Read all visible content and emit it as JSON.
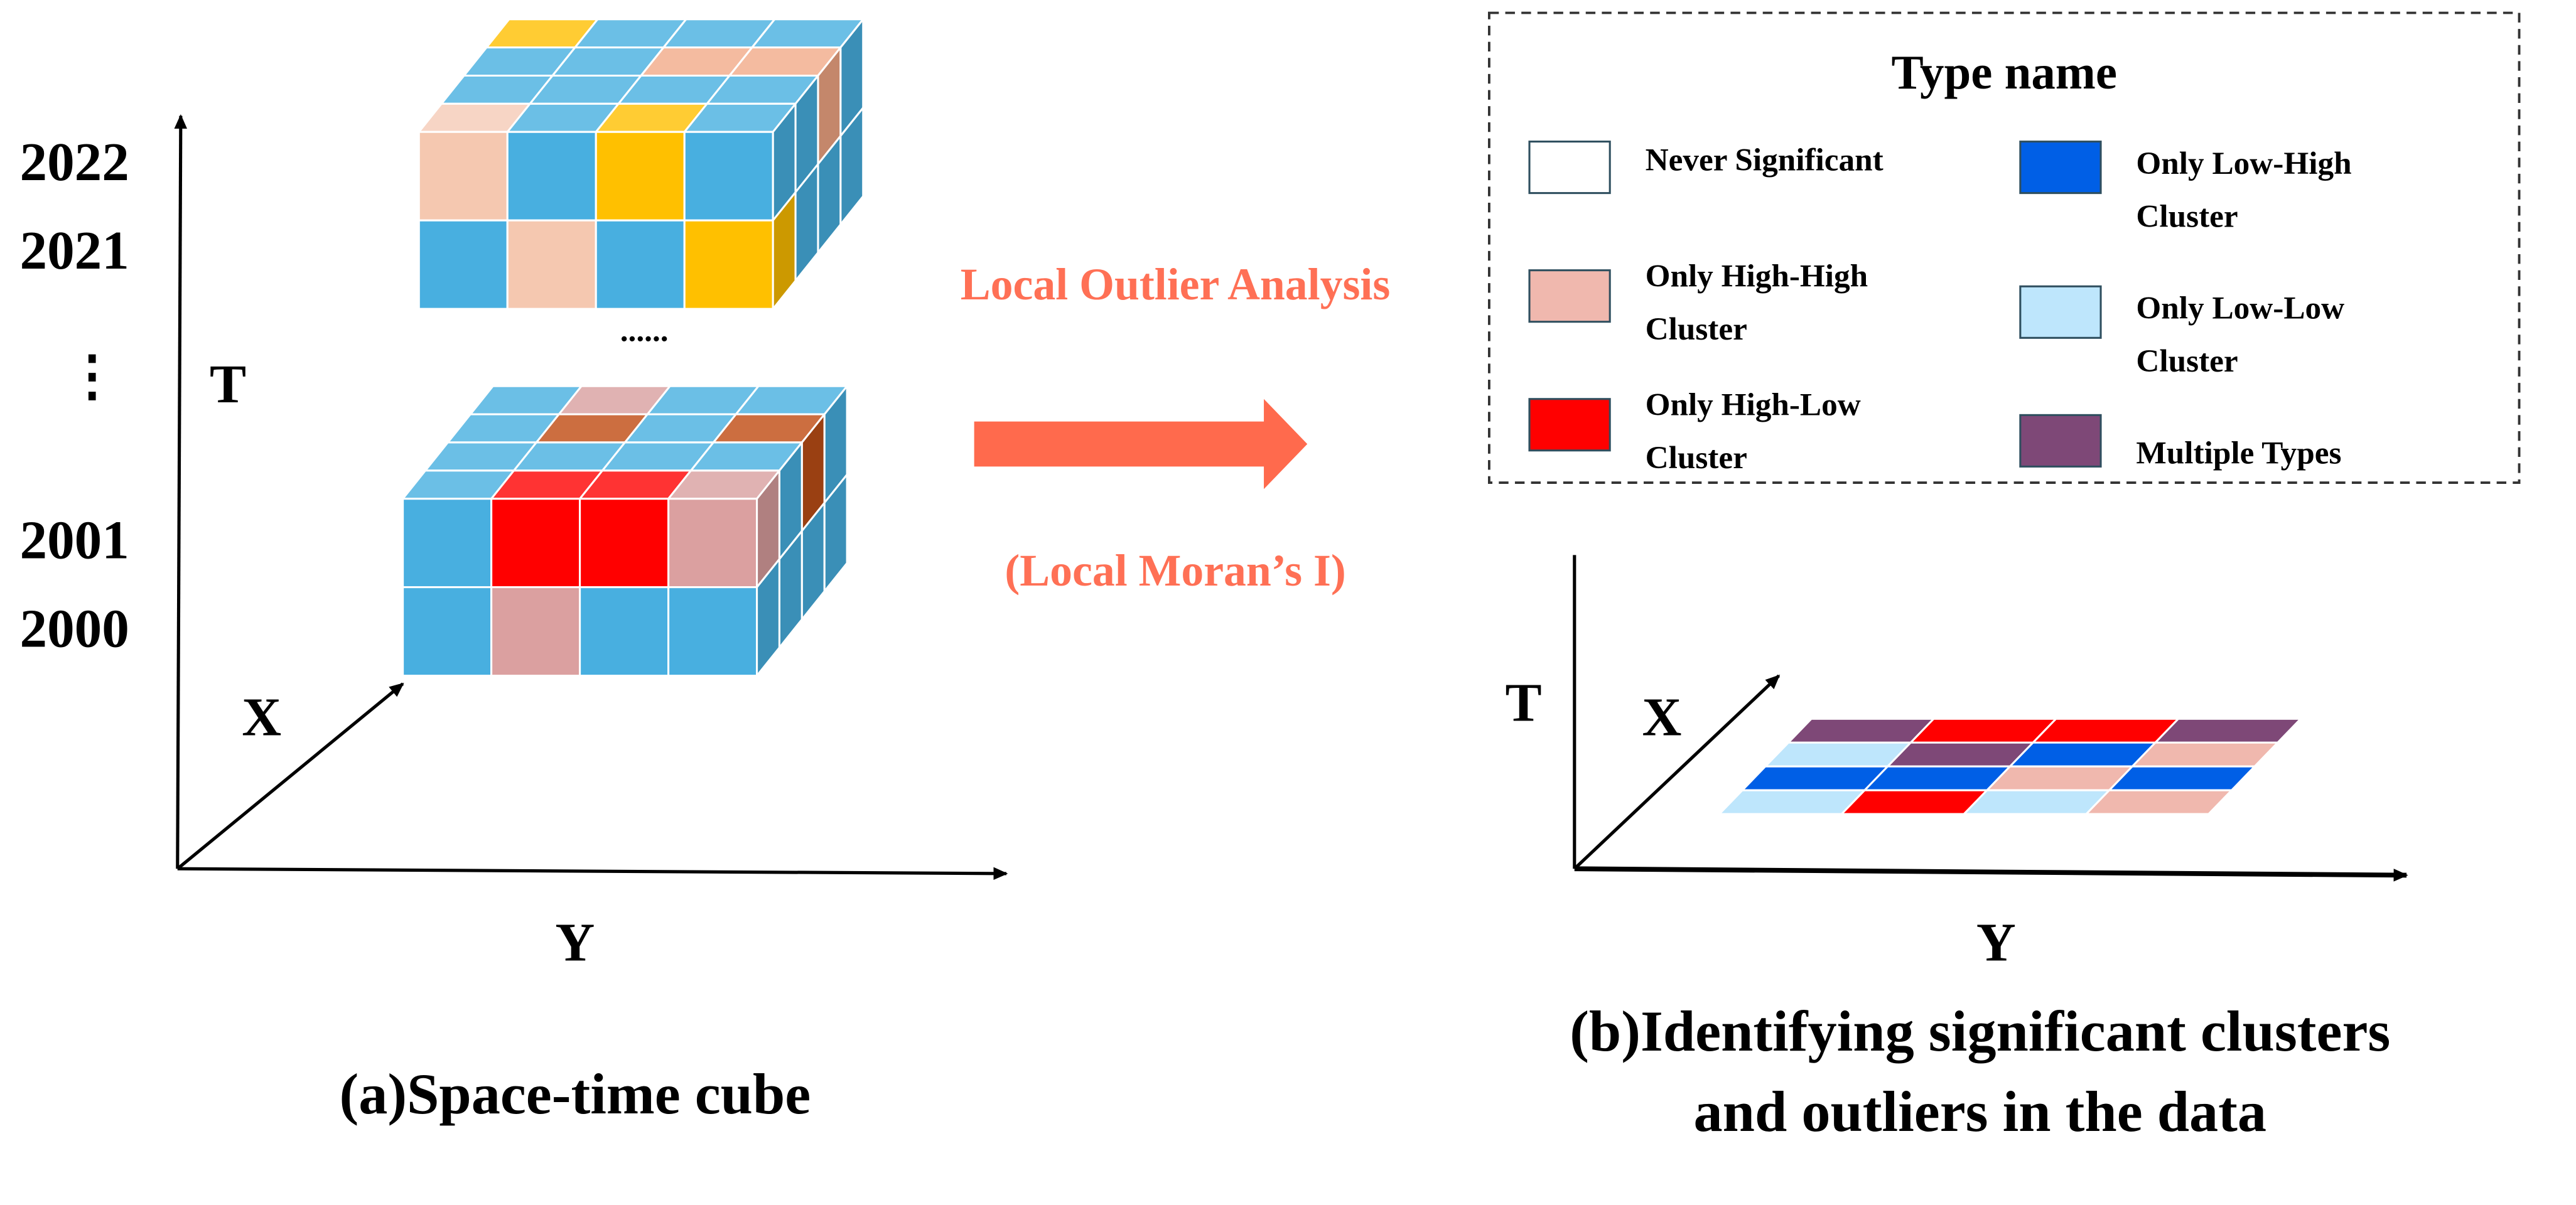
{
  "panel_a": {
    "years": [
      "2022",
      "2021",
      "⋮",
      "2001",
      "2000"
    ],
    "axis_t": "T",
    "axis_x": "X",
    "axis_y": "Y",
    "ellipsis": "......",
    "caption": "(a)Space-time cube",
    "top_cube": {
      "front": [
        [
          "peach",
          "blue",
          "yellow",
          "blue"
        ],
        [
          "blue",
          "peach",
          "blue",
          "yellow"
        ]
      ],
      "top": [
        [
          "peachL",
          "blueL",
          "yellowL",
          "blueL"
        ],
        [
          "blueL",
          "blueL",
          "blueL",
          "blueL"
        ],
        [
          "blueL",
          "blueL",
          "salmon",
          "salmon"
        ],
        [
          "yellowL",
          "blueL",
          "blueL",
          "blueL"
        ]
      ],
      "side": [
        [
          "blueD",
          "blueD",
          "brownL",
          "blueD"
        ],
        [
          "yellowD",
          "blueD",
          "blueD",
          "blueD"
        ]
      ]
    },
    "bottom_cube": {
      "front": [
        [
          "blue",
          "red",
          "red",
          "pink"
        ],
        [
          "blue",
          "pink",
          "blue",
          "blue"
        ]
      ],
      "top": [
        [
          "blueL",
          "redL",
          "redL",
          "pinkL"
        ],
        [
          "blueL",
          "blueL",
          "blueL",
          "blueL"
        ],
        [
          "blueL",
          "brown",
          "blueL",
          "brown"
        ],
        [
          "blueL",
          "pinkL",
          "blueL",
          "blueL"
        ]
      ],
      "side": [
        [
          "pinkD",
          "blueD",
          "brownD",
          "blueD"
        ],
        [
          "blueD",
          "blueD",
          "blueD",
          "blueD"
        ]
      ]
    }
  },
  "method": {
    "title": "Local Outlier Analysis",
    "subtitle": "(Local Moran’s I)",
    "color": "#FF6A4D"
  },
  "legend": {
    "title": "Type name",
    "items": [
      {
        "key": "never",
        "lines": [
          "Never Significant"
        ],
        "color": "#FFFFFF"
      },
      {
        "key": "hh",
        "lines": [
          "Only High-High",
          "Cluster"
        ],
        "color": "#F0B8AE"
      },
      {
        "key": "hl",
        "lines": [
          "Only High-Low",
          "Cluster"
        ],
        "color": "#FF0000"
      },
      {
        "key": "lh",
        "lines": [
          "Only Low-High",
          "Cluster"
        ],
        "color": "#005FE6"
      },
      {
        "key": "ll",
        "lines": [
          "Only Low-Low",
          "Cluster"
        ],
        "color": "#BEE6FC"
      },
      {
        "key": "multi",
        "lines": [
          "Multiple Types"
        ],
        "color": "#7E4877"
      }
    ]
  },
  "panel_b": {
    "axis_t": "T",
    "axis_x": "X",
    "axis_y": "Y",
    "grid": [
      [
        "multi",
        "hl",
        "hl",
        "multi"
      ],
      [
        "ll",
        "multi",
        "lh",
        "hh"
      ],
      [
        "lh",
        "lh",
        "hh",
        "lh"
      ],
      [
        "ll",
        "hl",
        "ll",
        "hh"
      ]
    ],
    "caption_lines": [
      "(b)Identifying significant clusters",
      "and outliers in the data"
    ]
  },
  "palette": {
    "blue": "#48AFE0",
    "blueL": "#6BBFE6",
    "blueD": "#3A8FB7",
    "peach": "#F5C8B0",
    "peachL": "#F7D5C5",
    "salmon": "#F4BBA0",
    "brownL": "#C4876B",
    "yellow": "#FFC000",
    "yellowL": "#FFCC33",
    "yellowD": "#CC9900",
    "red": "#FF0000",
    "redL": "#FF3333",
    "pink": "#DBA0A0",
    "pinkL": "#E0B2B2",
    "pinkD": "#B08080",
    "brown": "#CC6E40",
    "brownD": "#9A4012"
  }
}
